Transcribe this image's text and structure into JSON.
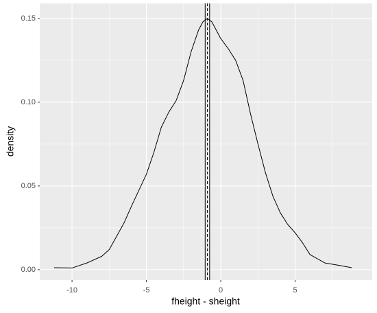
{
  "chart_data": {
    "type": "line",
    "xlabel": "fheight - sheight",
    "ylabel": "density",
    "x": [
      -11.2,
      -10,
      -9,
      -8,
      -7.5,
      -7,
      -6.5,
      -6,
      -5,
      -4.5,
      -4,
      -3.5,
      -3,
      -2.5,
      -2,
      -1.5,
      -1.2,
      -0.9,
      -0.6,
      0,
      0.5,
      1,
      1.5,
      2,
      2.5,
      3,
      3.5,
      4,
      4.5,
      5,
      5.5,
      6,
      7,
      8,
      8.8
    ],
    "series": [
      {
        "color": "#000000",
        "values": [
          0.0012,
          0.001,
          0.004,
          0.008,
          0.012,
          0.02,
          0.028,
          0.038,
          0.057,
          0.07,
          0.085,
          0.094,
          0.101,
          0.113,
          0.13,
          0.143,
          0.148,
          0.15,
          0.148,
          0.138,
          0.132,
          0.125,
          0.113,
          0.093,
          0.075,
          0.058,
          0.044,
          0.034,
          0.027,
          0.022,
          0.016,
          0.009,
          0.004,
          0.0025,
          0.0012
        ]
      }
    ],
    "vlines": [
      {
        "x": -1.05,
        "linetype": "solid"
      },
      {
        "x": -0.9,
        "linetype": "dashed"
      },
      {
        "x": -0.75,
        "linetype": "solid"
      }
    ],
    "xlim": [
      -12.17,
      10.18
    ],
    "ylim": [
      -0.0062,
      0.159
    ],
    "xticks": [
      -10,
      -5,
      0,
      5
    ],
    "yticks": [
      {
        "value": 0,
        "label": "0.00"
      },
      {
        "value": 0.05,
        "label": "0.05"
      },
      {
        "value": 0.1,
        "label": "0.10"
      },
      {
        "value": 0.15,
        "label": "0.15"
      }
    ],
    "xminor": [
      -12.5,
      -7.5,
      -2.5,
      2.5,
      7.5
    ],
    "yminor": [
      0.025,
      0.075,
      0.125
    ],
    "grid": true
  }
}
